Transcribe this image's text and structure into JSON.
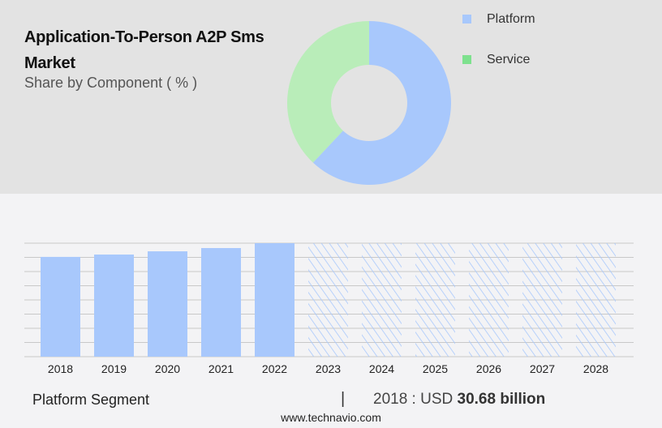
{
  "header": {
    "title": "Application-To-Person A2P Sms Market",
    "subtitle": "Share by Component ( % )"
  },
  "colors": {
    "platform": "#a8c8fc",
    "service": "#b9edb9",
    "service_legend": "#7ee18e",
    "grid": "#c8c8c8"
  },
  "chart_data": [
    {
      "type": "pie",
      "variant": "donut",
      "legend_position": "top-right",
      "legend": [
        "Platform",
        "Service"
      ],
      "slices": [
        {
          "name": "Platform",
          "value": 62
        },
        {
          "name": "Service",
          "value": 38
        }
      ]
    },
    {
      "type": "bar",
      "categories": [
        "2018",
        "2019",
        "2020",
        "2021",
        "2022",
        "2023",
        "2024",
        "2025",
        "2026",
        "2027",
        "2028"
      ],
      "values": [
        30.68,
        31.4,
        32.4,
        33.4,
        34.9,
        null,
        null,
        null,
        null,
        null,
        null
      ],
      "forecast": [
        false,
        false,
        false,
        false,
        false,
        true,
        true,
        true,
        true,
        true,
        true
      ],
      "ylim": [
        0,
        34.9
      ],
      "grid": true
    }
  ],
  "footer": {
    "segment": "Platform Segment",
    "separator": "|",
    "value_prefix": "2018 : USD",
    "value_bold": "30.68 billion",
    "site": "www.technavio.com"
  }
}
